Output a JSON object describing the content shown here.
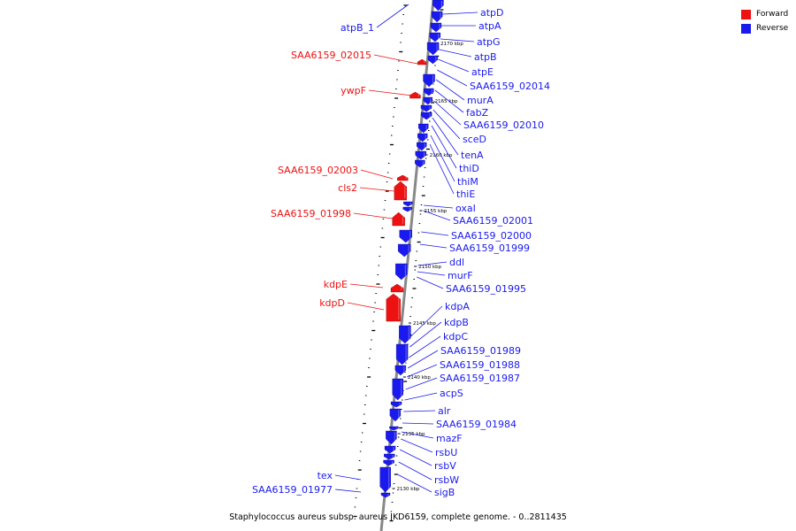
{
  "caption": "Staphylococcus aureus subsp. aureus JKD6159, complete genome. - 0..2811435",
  "legend": [
    {
      "label": "Forward",
      "color": "#ee1111"
    },
    {
      "label": "Reverse",
      "color": "#1a1aee"
    }
  ],
  "colors": {
    "forward": "#ee1111",
    "reverse": "#1a1aee",
    "axis": "#888888"
  },
  "tick_labels": [
    "2170 kbp",
    "2165 kbp",
    "2160 kbp",
    "2155 kbp",
    "2150 kbp",
    "2145 kbp",
    "2140 kbp",
    "2135 kbp",
    "2130 kbp"
  ],
  "left_labels": [
    {
      "name": "atpB_1",
      "strand": "reverse"
    },
    {
      "name": "SAA6159_02015",
      "strand": "forward"
    },
    {
      "name": "ywpF",
      "strand": "forward"
    },
    {
      "name": "SAA6159_02003",
      "strand": "forward"
    },
    {
      "name": "cls2",
      "strand": "forward"
    },
    {
      "name": "SAA6159_01998",
      "strand": "forward"
    },
    {
      "name": "kdpE",
      "strand": "forward"
    },
    {
      "name": "kdpD",
      "strand": "forward"
    },
    {
      "name": "tex",
      "strand": "reverse"
    },
    {
      "name": "SAA6159_01977",
      "strand": "reverse"
    }
  ],
  "right_labels": [
    {
      "name": "atpD"
    },
    {
      "name": "atpA"
    },
    {
      "name": "atpG"
    },
    {
      "name": "atpB"
    },
    {
      "name": "atpE"
    },
    {
      "name": "SAA6159_02014"
    },
    {
      "name": "murA"
    },
    {
      "name": "fabZ"
    },
    {
      "name": "SAA6159_02010"
    },
    {
      "name": "sceD"
    },
    {
      "name": "tenA"
    },
    {
      "name": "thiD"
    },
    {
      "name": "thiM"
    },
    {
      "name": "thiE"
    },
    {
      "name": "oxaI"
    },
    {
      "name": "SAA6159_02001"
    },
    {
      "name": "SAA6159_02000"
    },
    {
      "name": "SAA6159_01999"
    },
    {
      "name": "ddl"
    },
    {
      "name": "murF"
    },
    {
      "name": "SAA6159_01995"
    },
    {
      "name": "kdpA"
    },
    {
      "name": "kdpB"
    },
    {
      "name": "kdpC"
    },
    {
      "name": "SAA6159_01989"
    },
    {
      "name": "SAA6159_01988"
    },
    {
      "name": "SAA6159_01987"
    },
    {
      "name": "acpS"
    },
    {
      "name": "alr"
    },
    {
      "name": "SAA6159_01984"
    },
    {
      "name": "mazF"
    },
    {
      "name": "rsbU"
    },
    {
      "name": "rsbV"
    },
    {
      "name": "rsbW"
    },
    {
      "name": "sigB"
    }
  ]
}
